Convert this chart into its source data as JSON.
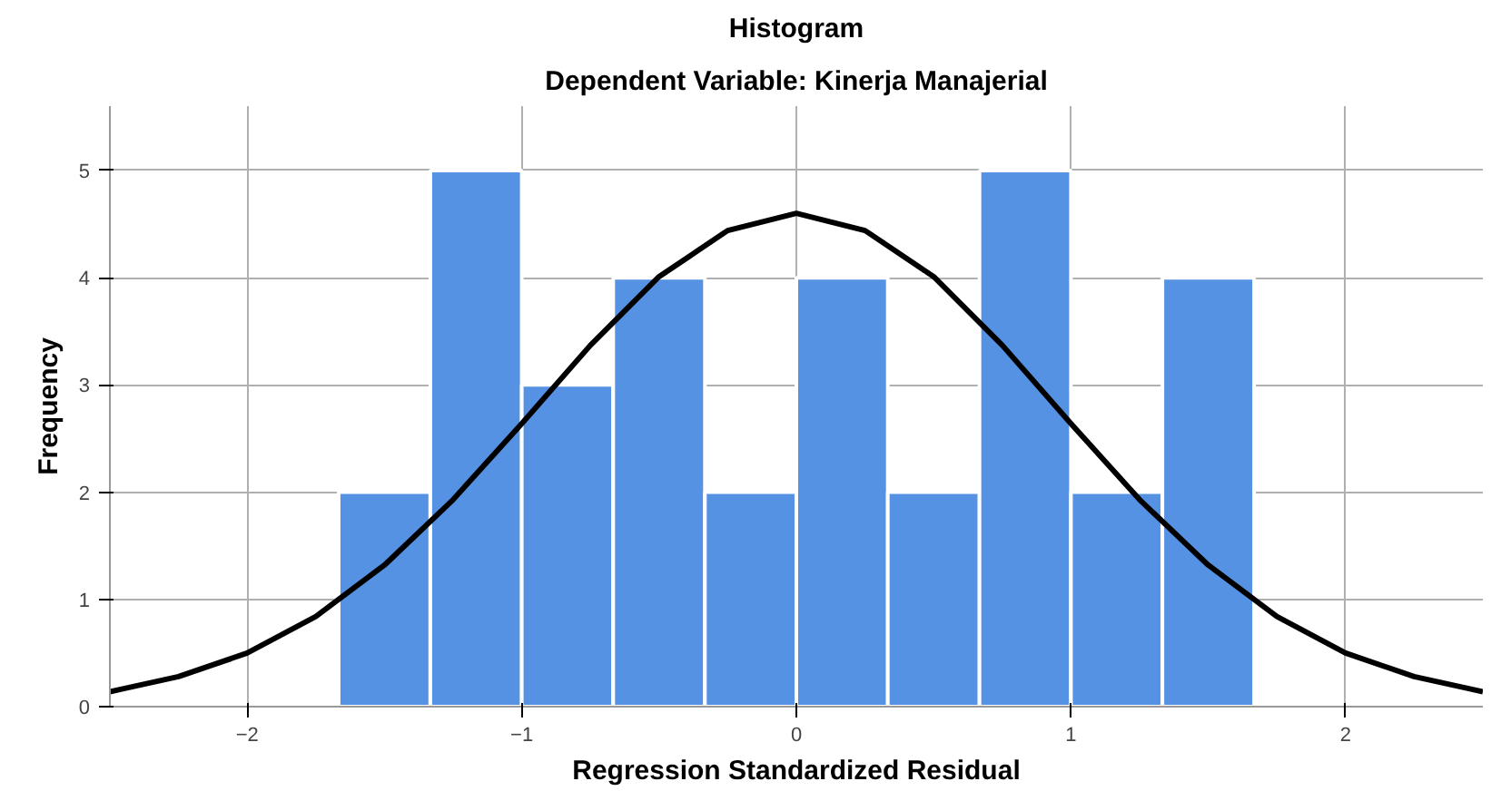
{
  "chart_data": {
    "type": "histogram",
    "title": "Histogram",
    "subtitle": "Dependent Variable: Kinerja Manajerial",
    "xlabel": "Regression Standardized Residual",
    "ylabel": "Frequency",
    "bins": [
      -1.667,
      -1.333,
      -1.0,
      -0.667,
      -0.333,
      0.0,
      0.333,
      0.667,
      1.0,
      1.333,
      1.667
    ],
    "values": [
      2,
      5,
      3,
      4,
      2,
      4,
      2,
      5,
      2,
      4
    ],
    "color": "#5592e3",
    "series": [
      {
        "type": "line",
        "color": "#000000",
        "x": [
          -2.5,
          -2.25,
          -2.0,
          -1.75,
          -1.5,
          -1.25,
          -1.0,
          -0.75,
          -0.5,
          -0.25,
          0.0,
          0.25,
          0.5,
          0.75,
          1.0,
          1.25,
          1.5,
          1.75,
          2.0,
          2.25,
          2.5
        ],
        "values": [
          0.14,
          0.28,
          0.5,
          0.84,
          1.32,
          1.93,
          2.64,
          3.37,
          4.01,
          4.44,
          4.6,
          4.44,
          4.01,
          3.37,
          2.64,
          1.93,
          1.32,
          0.84,
          0.5,
          0.28,
          0.14
        ]
      }
    ],
    "xlim": [
      -2.5,
      2.5
    ],
    "ylim": [
      0,
      5.6
    ],
    "xticks": [
      -2,
      -1,
      0,
      1,
      2
    ],
    "yticks": [
      0,
      1,
      2,
      3,
      4,
      5
    ],
    "grid": true
  }
}
